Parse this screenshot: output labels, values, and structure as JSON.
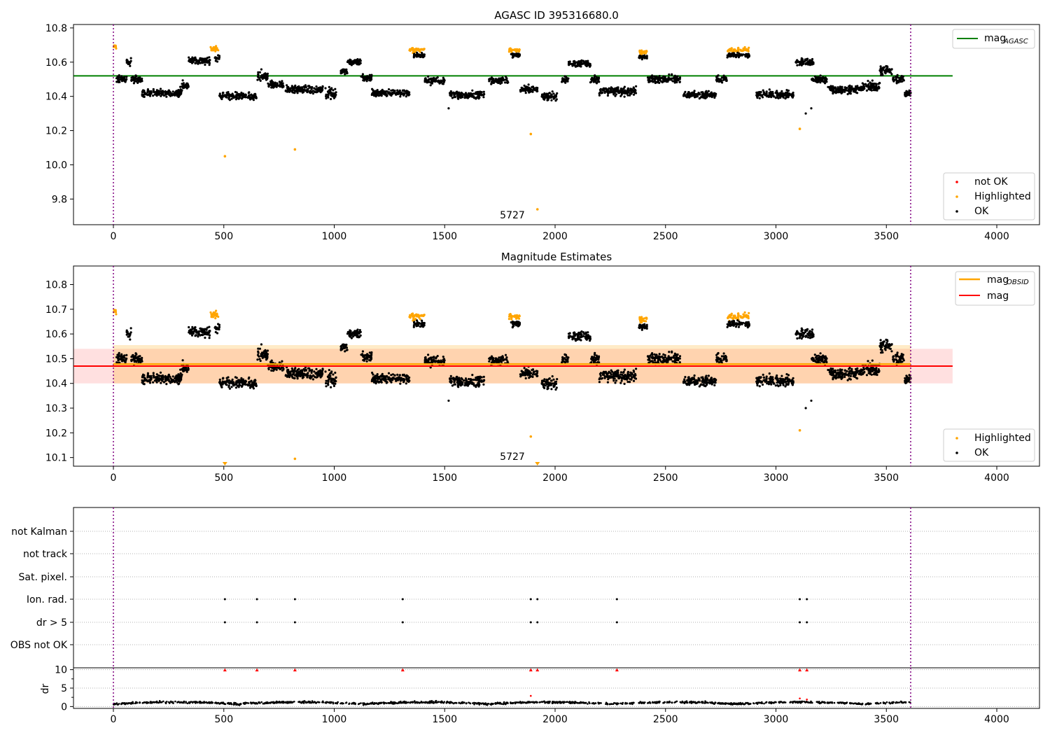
{
  "chart_data": [
    {
      "id": "agasc",
      "type": "scatter",
      "title": "AGASC ID 395316680.0",
      "xlim": [
        -180,
        4200
      ],
      "ylim": [
        9.65,
        10.82
      ],
      "xticks": [
        0,
        500,
        1000,
        1500,
        2000,
        2500,
        3000,
        3500,
        4000
      ],
      "yticks": [
        9.8,
        10.0,
        10.2,
        10.4,
        10.6,
        10.8
      ],
      "ytick_labels": [
        "9.8",
        "10.0",
        "10.2",
        "10.4",
        "10.6",
        "10.8"
      ],
      "vlines": [
        0,
        3610
      ],
      "hline": {
        "name": "mag_AGASC",
        "value": 10.52,
        "x_range": [
          -180,
          3800
        ],
        "color": "#008000"
      },
      "annotation": {
        "text": "5727",
        "x": 1800,
        "y": 9.69
      },
      "outliers_highlighted": [
        [
          505,
          10.05
        ],
        [
          822,
          10.09
        ],
        [
          1890,
          10.18
        ],
        [
          3108,
          10.21
        ],
        [
          1920,
          9.74
        ]
      ],
      "outliers_ok": [
        [
          3135,
          10.3
        ],
        [
          3160,
          10.33
        ],
        [
          1518,
          10.33
        ]
      ],
      "legend_top": {
        "position": "top-right",
        "entries": [
          {
            "label": "mag",
            "sub": "AGASC",
            "color": "#008000"
          }
        ]
      },
      "legend_bottom": {
        "position": "bottom-right",
        "entries": [
          {
            "label": "not OK",
            "color": "#ff0000"
          },
          {
            "label": "Highlighted",
            "color": "#ffa500"
          },
          {
            "label": "OK",
            "color": "#000000"
          }
        ]
      }
    },
    {
      "id": "estimates",
      "type": "scatter",
      "title": "Magnitude Estimates",
      "xlim": [
        -180,
        4200
      ],
      "ylim": [
        10.065,
        10.875
      ],
      "xticks": [
        0,
        500,
        1000,
        1500,
        2000,
        2500,
        3000,
        3500,
        4000
      ],
      "yticks": [
        10.1,
        10.2,
        10.3,
        10.4,
        10.5,
        10.6,
        10.7,
        10.8
      ],
      "ytick_labels": [
        "10.1",
        "10.2",
        "10.3",
        "10.4",
        "10.5",
        "10.6",
        "10.7",
        "10.8"
      ],
      "vlines": [
        0,
        3610
      ],
      "mag_line": {
        "name": "mag",
        "value": 10.47,
        "band": [
          10.4,
          10.54
        ],
        "color": "#ff0000"
      },
      "mag_obsid_line": {
        "name": "mag_OBSID",
        "value": 10.478,
        "band": [
          10.4,
          10.555
        ],
        "color": "#ffa500"
      },
      "annotation": {
        "text": "5727",
        "x": 1800,
        "y": 10.09
      },
      "outliers_highlighted": [
        [
          822,
          10.095
        ],
        [
          1890,
          10.185
        ],
        [
          3108,
          10.21
        ]
      ],
      "outliers_ok": [
        [
          3135,
          10.3
        ],
        [
          3160,
          10.33
        ],
        [
          1518,
          10.33
        ]
      ],
      "off_scale_markers": [
        505,
        1920
      ],
      "legend_top": {
        "position": "top-right",
        "entries": [
          {
            "label": "mag",
            "sub": "OBSID",
            "color": "#ffa500"
          },
          {
            "label": "mag",
            "color": "#ff0000"
          }
        ]
      },
      "legend_bottom": {
        "position": "bottom-right",
        "entries": [
          {
            "label": "Highlighted",
            "color": "#ffa500"
          },
          {
            "label": "OK",
            "color": "#000000"
          }
        ]
      }
    },
    {
      "id": "flags",
      "type": "scatter",
      "categories": [
        "not Kalman",
        "not track",
        "Sat. pixel.",
        "Ion. rad.",
        "dr > 5",
        "OBS not OK"
      ],
      "flag_times": {
        "Ion. rad.": [
          505,
          650,
          822,
          1310,
          1890,
          1920,
          2280,
          3108,
          3140
        ],
        "dr > 5": [
          505,
          650,
          822,
          1310,
          1890,
          1920,
          2280,
          3108,
          3140
        ]
      },
      "vlines": [
        0,
        3610
      ]
    },
    {
      "id": "dr",
      "type": "line",
      "ylabel": "dr",
      "xlim": [
        -180,
        4200
      ],
      "ylim": [
        -0.5,
        10.5
      ],
      "xticks": [
        0,
        500,
        1000,
        1500,
        2000,
        2500,
        3000,
        3500,
        4000
      ],
      "yticks": [
        0,
        5,
        10
      ],
      "yticks_minor": [
        2.5,
        7.5
      ],
      "vlines": [
        0,
        3610
      ],
      "clipped_markers": [
        505,
        650,
        822,
        1310,
        1890,
        1920,
        2280,
        3108,
        3140
      ],
      "dr_outliers": [
        [
          1890,
          2.9
        ],
        [
          3108,
          2.2
        ],
        [
          3140,
          1.9
        ]
      ]
    }
  ]
}
